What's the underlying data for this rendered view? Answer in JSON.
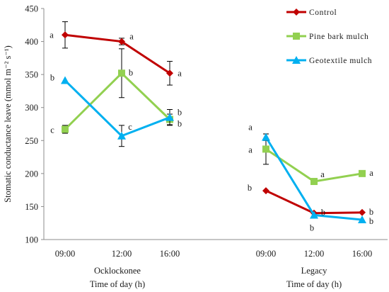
{
  "chart_data": {
    "type": "line",
    "ylabel": "Stomatic conductance leave (mmol m⁻² s⁻¹)",
    "ylim": [
      100,
      450
    ],
    "yticks": [
      100,
      150,
      200,
      250,
      300,
      350,
      400,
      450
    ],
    "grid": false,
    "legend_position": "top-right",
    "groups": [
      {
        "name": "Ocklockonee",
        "xlabel": "Time of day (h)",
        "categories": [
          "09:00",
          "12:00",
          "16:00"
        ]
      },
      {
        "name": "Legacy",
        "xlabel": "Time of day (h)",
        "categories": [
          "09:00",
          "12:00",
          "16:00"
        ]
      }
    ],
    "series": [
      {
        "name": "Control",
        "color": "#c00000",
        "marker": "diamond",
        "values": [
          [
            410,
            400,
            352
          ],
          [
            174,
            140,
            141
          ]
        ],
        "errors": [
          [
            20,
            5,
            18
          ],
          [
            0,
            0,
            0
          ]
        ],
        "letters": [
          [
            "a",
            "a",
            "a"
          ],
          [
            "b",
            "b",
            "b"
          ]
        ]
      },
      {
        "name": "Pine bark mulch",
        "color": "#92d050",
        "marker": "square",
        "values": [
          [
            267,
            352,
            282
          ],
          [
            237,
            188,
            200
          ]
        ],
        "errors": [
          [
            6,
            37,
            8
          ],
          [
            23,
            0,
            0
          ]
        ],
        "letters": [
          [
            "c",
            "b",
            "b"
          ],
          [
            "a",
            "a",
            "a"
          ]
        ]
      },
      {
        "name": "Geotextile mulch",
        "color": "#00b0f0",
        "marker": "triangle",
        "values": [
          [
            341,
            257,
            285
          ],
          [
            255,
            137,
            130
          ]
        ],
        "errors": [
          [
            0,
            16,
            12
          ],
          [
            5,
            0,
            0
          ]
        ],
        "letters": [
          [
            "b",
            "c",
            "b"
          ],
          [
            "a",
            "b",
            "b"
          ]
        ]
      }
    ]
  }
}
